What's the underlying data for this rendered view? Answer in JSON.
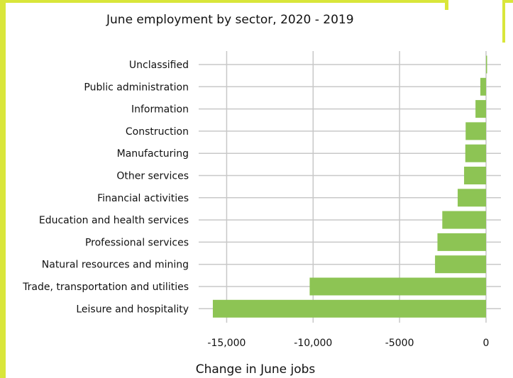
{
  "chart_data": {
    "type": "bar",
    "orientation": "horizontal",
    "title": "June employment by sector, 2020 - 2019",
    "xlabel": "Change in June jobs",
    "ylabel": "",
    "xlim": [
      -15800,
      500
    ],
    "x_ticks": [
      -15000,
      -10000,
      -5000,
      0
    ],
    "x_tick_labels": [
      "-15,000",
      "-10,000",
      "-5000",
      "0"
    ],
    "grid": true,
    "legend": "none",
    "categories": [
      "Unclassified",
      "Public administration",
      "Information",
      "Construction",
      "Manufacturing",
      "Other services",
      "Financial activities",
      "Education and health services",
      "Professional services",
      "Natural resources and mining",
      "Trade, transportation and utilities",
      "Leisure and hospitality"
    ],
    "values": [
      50,
      -330,
      -610,
      -1180,
      -1200,
      -1270,
      -1640,
      -2530,
      -2810,
      -2950,
      -10200,
      -15800
    ],
    "colors": {
      "bar": "#8dc454",
      "frame": "#d9e63a"
    }
  }
}
